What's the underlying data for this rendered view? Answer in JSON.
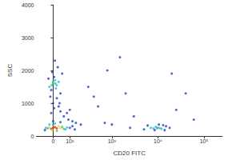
{
  "chart_data": {
    "type": "scatter",
    "xlabel": "CD20 FITC",
    "ylabel": "SSC",
    "xlim": [
      -100,
      250000
    ],
    "ylim": [
      0,
      4000
    ],
    "xticks": [
      0,
      {
        "value": 100,
        "label": "10²"
      },
      {
        "value": 1000,
        "label": "10³"
      },
      {
        "value": 10000,
        "label": "10⁴"
      },
      {
        "value": 100000,
        "label": "10⁵"
      }
    ],
    "yticks": [
      0,
      1000,
      2000,
      3000,
      4000
    ],
    "grid": false,
    "x": [
      -20,
      0,
      10,
      20,
      -10,
      5,
      30,
      15,
      -5,
      25,
      -15,
      40,
      0,
      10,
      -25,
      50,
      20,
      5,
      -10,
      35,
      0,
      12,
      -8,
      60,
      90,
      120,
      150,
      40,
      80,
      200,
      30,
      100,
      0,
      20,
      -10,
      10,
      -20,
      40,
      30,
      -5,
      -30,
      60,
      50,
      0,
      20,
      -40,
      80,
      70,
      10,
      -20,
      100,
      -45,
      120,
      40,
      0,
      140,
      8000,
      10000,
      12000,
      9000,
      7000,
      9500,
      11000,
      5000,
      15000,
      13000,
      6000,
      8500,
      18000,
      10500,
      14000,
      300,
      800,
      2000,
      500,
      3000,
      20000,
      40000,
      1500,
      700,
      2500,
      1000,
      60000,
      25000,
      400
    ],
    "values": [
      1500,
      1600,
      1700,
      1550,
      1400,
      1800,
      1650,
      1450,
      1950,
      2100,
      1200,
      1300,
      1000,
      2300,
      1750,
      1900,
      1150,
      850,
      700,
      1000,
      1650,
      1600,
      1550,
      600,
      500,
      450,
      400,
      750,
      700,
      350,
      900,
      800,
      250,
      230,
      220,
      270,
      260,
      240,
      300,
      180,
      230,
      220,
      280,
      330,
      160,
      250,
      260,
      200,
      380,
      350,
      250,
      180,
      300,
      420,
      450,
      200,
      230,
      250,
      220,
      280,
      250,
      240,
      240,
      200,
      300,
      330,
      320,
      180,
      250,
      350,
      180,
      1500,
      2000,
      1300,
      900,
      600,
      1900,
      1300,
      2400,
      400,
      250,
      350,
      500,
      800,
      1200
    ],
    "colors": [
      "#29b6e8",
      "#29b6e8",
      "#29b6e8",
      "#29b6e8",
      "#1f3fbf",
      "#1f3fbf",
      "#29b6e8",
      "#29b6e8",
      "#1f3fbf",
      "#1f3fbf",
      "#1f3fbf",
      "#1f3fbf",
      "#1f3fbf",
      "#1f3fbf",
      "#1f3fbf",
      "#1f3fbf",
      "#1f3fbf",
      "#1f3fbf",
      "#1f3fbf",
      "#1f3fbf",
      "#3cc46a",
      "#3cc46a",
      "#3cc46a",
      "#1f3fbf",
      "#1f3fbf",
      "#1f3fbf",
      "#1f3fbf",
      "#1f3fbf",
      "#1f3fbf",
      "#1f3fbf",
      "#1f3fbf",
      "#1f3fbf",
      "#e0281c",
      "#e0281c",
      "#e0281c",
      "#e0281c",
      "#e8d21c",
      "#e8d21c",
      "#e8d21c",
      "#e8d21c",
      "#3cc46a",
      "#3cc46a",
      "#3cc46a",
      "#3cc46a",
      "#3cc46a",
      "#29b6e8",
      "#29b6e8",
      "#29b6e8",
      "#29b6e8",
      "#29b6e8",
      "#1f3fbf",
      "#1f3fbf",
      "#1f3fbf",
      "#1f3fbf",
      "#1f3fbf",
      "#1f3fbf",
      "#29b6e8",
      "#29b6e8",
      "#29b6e8",
      "#29b6e8",
      "#29b6e8",
      "#3cc46a",
      "#3cc46a",
      "#1f3fbf",
      "#1f3fbf",
      "#1f3fbf",
      "#1f3fbf",
      "#1f3fbf",
      "#1f3fbf",
      "#1f3fbf",
      "#1f3fbf",
      "#1f3fbf",
      "#1f3fbf",
      "#1f3fbf",
      "#1f3fbf",
      "#1f3fbf",
      "#1f3fbf",
      "#1f3fbf",
      "#1f3fbf",
      "#1f3fbf",
      "#1f3fbf",
      "#1f3fbf",
      "#1f3fbf",
      "#1f3fbf",
      "#1f3fbf"
    ]
  }
}
